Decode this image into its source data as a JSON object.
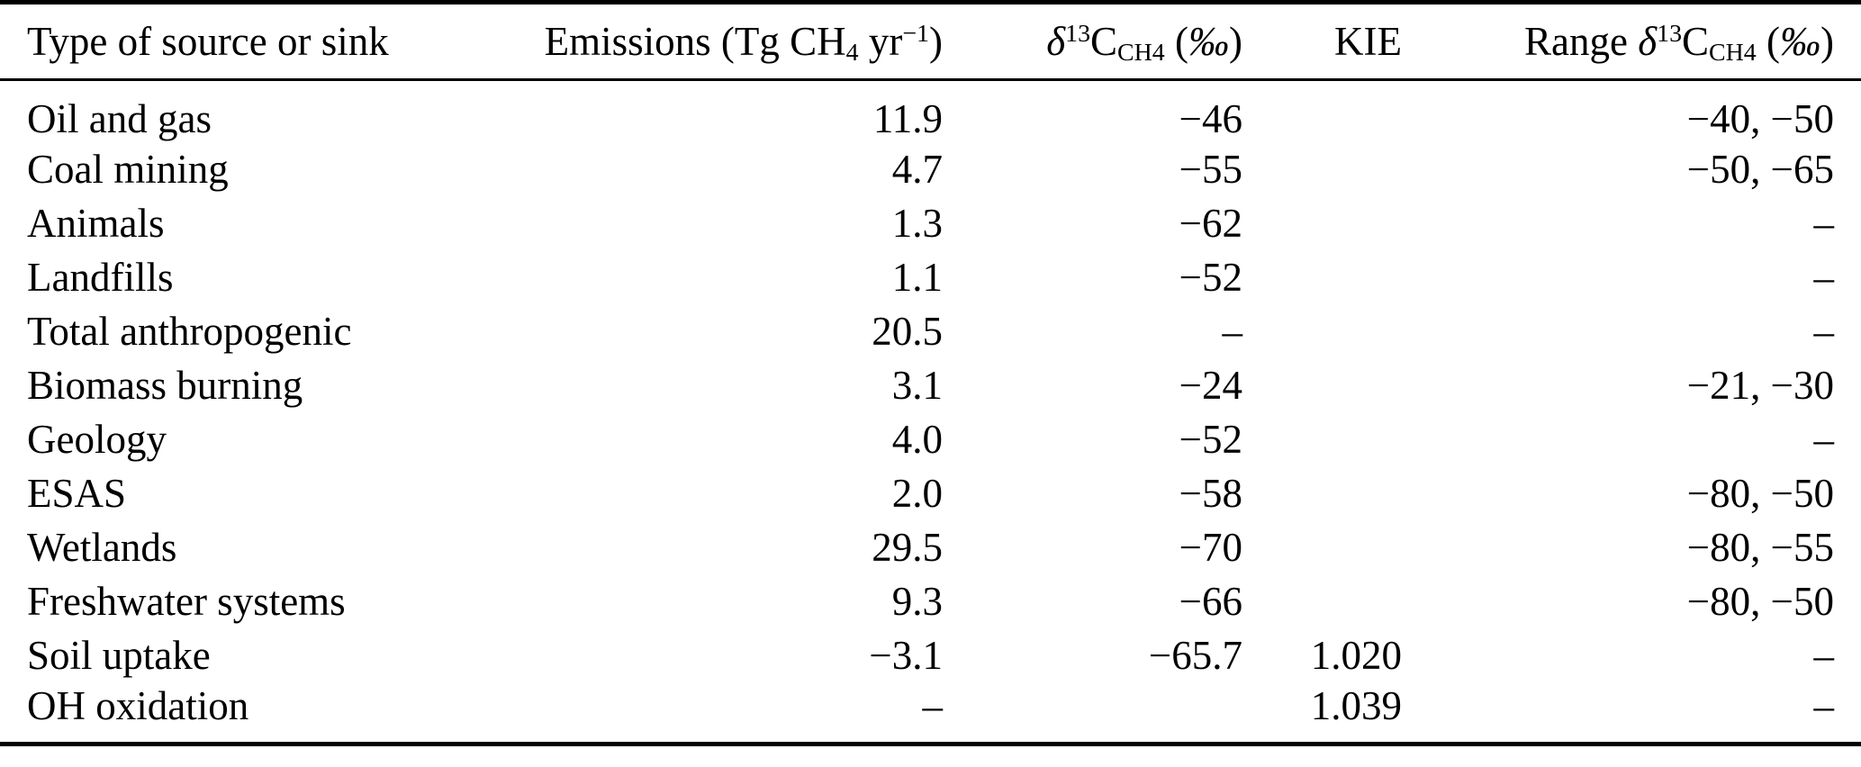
{
  "colors": {
    "background": "#ffffff",
    "text": "#000000",
    "rule": "#000000"
  },
  "table": {
    "columns": [
      {
        "key": "source",
        "label": "Type of source or sink",
        "align": "left"
      },
      {
        "key": "emissions",
        "label": "Emissions (Tg CH~4~ yr^−1^)",
        "align": "right"
      },
      {
        "key": "d13c",
        "label": "*δ*^13^C~CH4~ (*‰*)",
        "align": "right"
      },
      {
        "key": "kie",
        "label": "KIE",
        "align": "right"
      },
      {
        "key": "range",
        "label": "Range *δ*^13^C~CH4~ (*‰*)",
        "align": "right"
      }
    ],
    "rows": [
      {
        "source": "Oil and gas",
        "emissions": "11.9",
        "d13c": "−46",
        "kie": "",
        "range": "−40, −50"
      },
      {
        "source": "Coal mining",
        "emissions": "4.7",
        "d13c": "−55",
        "kie": "",
        "range": "−50, −65"
      },
      {
        "source": "Animals",
        "emissions": "1.3",
        "d13c": "−62",
        "kie": "",
        "range": "–"
      },
      {
        "source": "Landfills",
        "emissions": "1.1",
        "d13c": "−52",
        "kie": "",
        "range": "–"
      },
      {
        "source": "Total anthropogenic",
        "emissions": "20.5",
        "d13c": "–",
        "kie": "",
        "range": "–"
      },
      {
        "source": "Biomass burning",
        "emissions": "3.1",
        "d13c": "−24",
        "kie": "",
        "range": "−21, −30"
      },
      {
        "source": "Geology",
        "emissions": "4.0",
        "d13c": "−52",
        "kie": "",
        "range": "–"
      },
      {
        "source": "ESAS",
        "emissions": "2.0",
        "d13c": "−58",
        "kie": "",
        "range": "−80, −50"
      },
      {
        "source": "Wetlands",
        "emissions": "29.5",
        "d13c": "−70",
        "kie": "",
        "range": "−80, −55"
      },
      {
        "source": "Freshwater systems",
        "emissions": "9.3",
        "d13c": "−66",
        "kie": "",
        "range": "−80, −50"
      },
      {
        "source": "Soil uptake",
        "emissions": "−3.1",
        "d13c": "−65.7",
        "kie": "1.020",
        "range": "–"
      },
      {
        "source": "OH oxidation",
        "emissions": "–",
        "d13c": "",
        "kie": "1.039",
        "range": "–"
      }
    ]
  }
}
